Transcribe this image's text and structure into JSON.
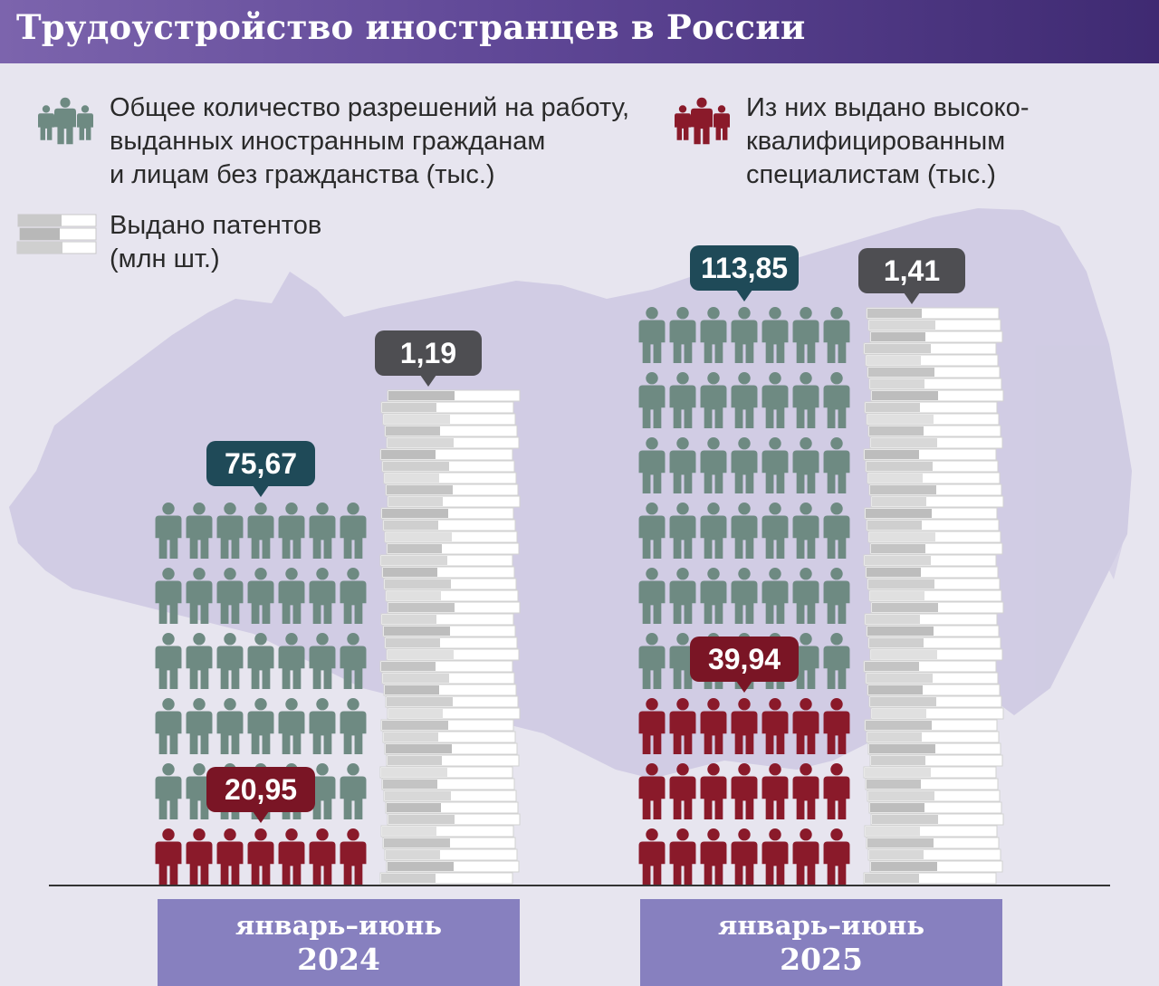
{
  "title": "Трудоустройство иностранцев в России",
  "legend": {
    "total_permits": [
      "Общее количество разрешений на работу,",
      "выданных иностранным гражданам",
      "и лицам без гражданства (тыс.)"
    ],
    "high_qualified": [
      "Из них выдано высоко-",
      "квалифицированным",
      "специалистам (тыс.)"
    ],
    "patents": [
      "Выдано патентов",
      "(млн шт.)"
    ]
  },
  "colors": {
    "total": "#6e8a82",
    "high_qualified": "#8a1a2a",
    "total_badge": "#1f4a58",
    "high_badge": "#7a1525",
    "patent_badge": "#4e4e52",
    "period_box": "#8780bf"
  },
  "icons": {
    "people_green": "people-group-icon",
    "people_red": "people-group-icon",
    "patents": "paper-stack-icon"
  },
  "chart_data": {
    "type": "pictogram",
    "title": "Трудоустройство иностранцев в России",
    "categories": [
      "январь–июнь 2024",
      "январь–июнь 2025"
    ],
    "series": [
      {
        "name": "Общее количество разрешений на работу, выданных иностранным гражданам и лицам без гражданства (тыс.)",
        "values": [
          75.67,
          113.85
        ],
        "labels": [
          "75,67",
          "113,85"
        ]
      },
      {
        "name": "Из них выдано высококвалифицированным специалистам (тыс.)",
        "values": [
          20.95,
          39.94
        ],
        "labels": [
          "20,95",
          "39,94"
        ]
      },
      {
        "name": "Выдано патентов (млн шт.)",
        "values": [
          1.19,
          1.41
        ],
        "labels": [
          "1,19",
          "1,41"
        ]
      }
    ]
  },
  "periods": [
    {
      "label": "январь–июнь",
      "year": "2024"
    },
    {
      "label": "январь–июнь",
      "year": "2025"
    }
  ]
}
